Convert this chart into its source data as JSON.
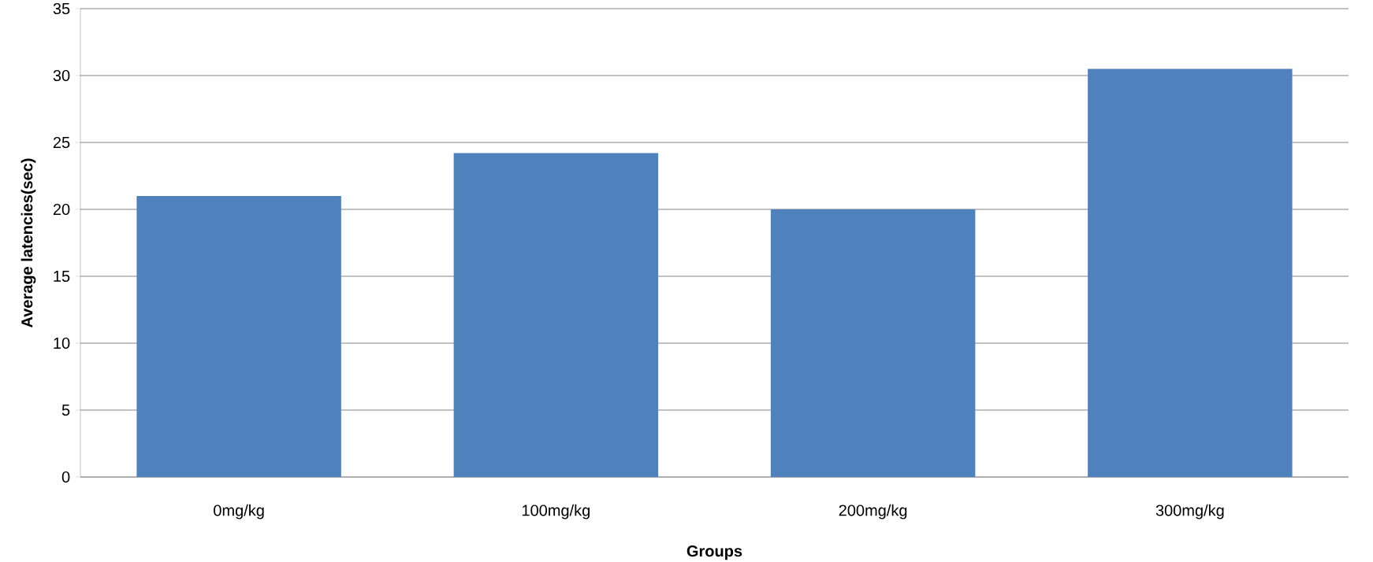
{
  "chart_data": {
    "type": "bar",
    "xlabel": "Groups",
    "ylabel": "Average latencies(sec)",
    "categories": [
      "0mg/kg",
      "100mg/kg",
      "200mg/kg",
      "300mg/kg"
    ],
    "values": [
      21,
      24.2,
      20,
      30.5
    ],
    "color": "#4f81bd",
    "ylim": [
      0,
      35
    ],
    "yticks": [
      0,
      5,
      10,
      15,
      20,
      25,
      30,
      35
    ],
    "grid": "y"
  }
}
